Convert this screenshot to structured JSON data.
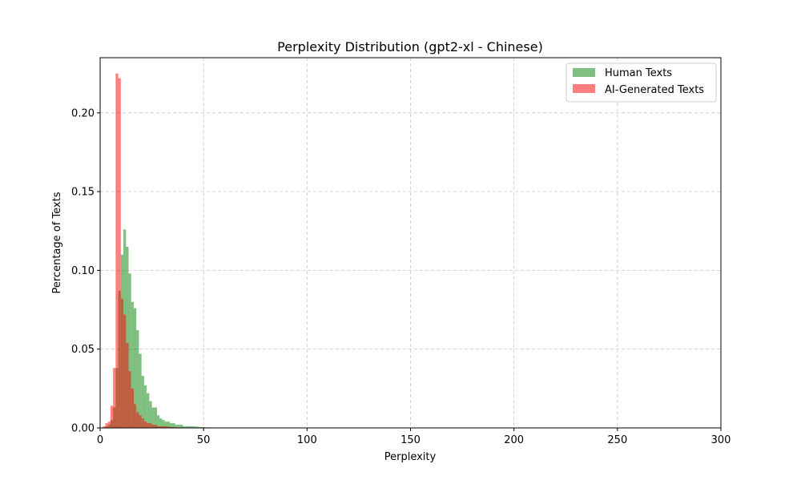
{
  "chart_data": {
    "type": "bar",
    "title": "Perplexity Distribution (gpt2-xl - Chinese)",
    "xlabel": "Perplexity",
    "ylabel": "Percentage of Texts",
    "xlim": [
      0,
      300
    ],
    "ylim": [
      0,
      0.235
    ],
    "xticks": [
      0,
      50,
      100,
      150,
      200,
      250,
      300
    ],
    "yticks": [
      0.0,
      0.05,
      0.1,
      0.15,
      0.2
    ],
    "xtick_labels": [
      "0",
      "50",
      "100",
      "150",
      "200",
      "250",
      "300"
    ],
    "ytick_labels": [
      "0.00",
      "0.05",
      "0.10",
      "0.15",
      "0.20"
    ],
    "grid": true,
    "legend_position": "top-right",
    "bin_width": 1.25,
    "series": [
      {
        "name": "Human Texts",
        "color": "#008000",
        "opacity": 0.5,
        "bin_start": 1.25,
        "values": [
          0.0,
          0.001,
          0.002,
          0.005,
          0.013,
          0.038,
          0.087,
          0.11,
          0.126,
          0.115,
          0.098,
          0.08,
          0.076,
          0.062,
          0.047,
          0.033,
          0.027,
          0.022,
          0.017,
          0.013,
          0.013,
          0.008,
          0.006,
          0.005,
          0.004,
          0.004,
          0.003,
          0.003,
          0.002,
          0.002,
          0.002,
          0.001,
          0.001,
          0.001,
          0.001,
          0.001,
          0.0008,
          0.0006,
          0.0005,
          0.0004,
          0.0003,
          0.0003,
          0.0002,
          0.0002,
          0.0001
        ]
      },
      {
        "name": "AI-Generated Texts",
        "color": "#ff0000",
        "opacity": 0.5,
        "bin_start": 1.25,
        "values": [
          0.001,
          0.003,
          0.004,
          0.014,
          0.038,
          0.225,
          0.222,
          0.082,
          0.072,
          0.054,
          0.036,
          0.025,
          0.015,
          0.01,
          0.008,
          0.006,
          0.004,
          0.003,
          0.003,
          0.002,
          0.002,
          0.001,
          0.001,
          0.001,
          0.001,
          0.0008,
          0.0006,
          0.0005,
          0.0004,
          0.0003,
          0.0003,
          0.0002,
          0.0002,
          0.0001,
          0.0001,
          0.0001
        ]
      }
    ]
  }
}
